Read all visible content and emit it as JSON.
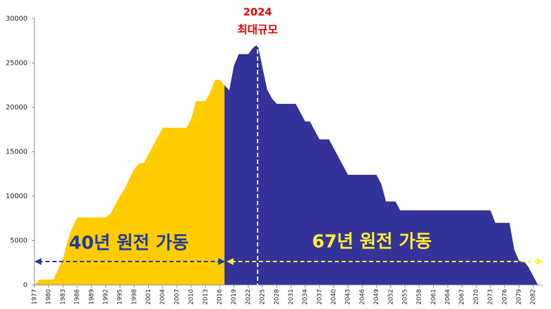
{
  "chart_data": {
    "type": "area",
    "annotations": [
      "2024",
      "최대규모",
      "40년 원전 가동",
      "67년 원전 가동"
    ],
    "x": [
      1977,
      1978,
      1979,
      1980,
      1981,
      1982,
      1983,
      1984,
      1985,
      1986,
      1987,
      1988,
      1989,
      1990,
      1991,
      1992,
      1993,
      1994,
      1995,
      1996,
      1997,
      1998,
      1999,
      2000,
      2001,
      2002,
      2003,
      2004,
      2005,
      2006,
      2007,
      2008,
      2009,
      2010,
      2011,
      2012,
      2013,
      2014,
      2015,
      2016,
      2017,
      2018,
      2019,
      2020,
      2021,
      2022,
      2023,
      2024,
      2025,
      2026,
      2027,
      2028,
      2029,
      2030,
      2031,
      2032,
      2033,
      2034,
      2035,
      2036,
      2037,
      2038,
      2039,
      2040,
      2041,
      2042,
      2043,
      2044,
      2045,
      2046,
      2047,
      2048,
      2049,
      2050,
      2051,
      2052,
      2053,
      2054,
      2055,
      2056,
      2057,
      2058,
      2059,
      2060,
      2061,
      2062,
      2063,
      2064,
      2065,
      2066,
      2067,
      2068,
      2069,
      2070,
      2071,
      2072,
      2073,
      2074,
      2075,
      2076,
      2077,
      2078,
      2079,
      2080,
      2081,
      2082,
      2083
    ],
    "series": [
      {
        "color": "#ffcc00",
        "values": [
          0,
          587,
          587,
          587,
          587,
          1800,
          3000,
          5000,
          6500,
          7600,
          7600,
          7600,
          7600,
          7600,
          7600,
          7600,
          8000,
          9000,
          10000,
          10800,
          12000,
          13000,
          13700,
          13700,
          14700,
          15700,
          16700,
          17700,
          17700,
          17700,
          17700,
          17700,
          17700,
          18700,
          20700,
          20700,
          20700,
          21700,
          23100,
          23100,
          22500,
          null,
          null,
          null,
          null,
          null,
          null,
          null,
          null,
          null,
          null,
          null,
          null,
          null,
          null,
          null,
          null,
          null,
          null,
          null,
          null,
          null,
          null,
          null,
          null,
          null,
          null,
          null,
          null,
          null,
          null,
          null,
          null,
          null,
          null,
          null,
          null,
          null,
          null,
          null,
          null,
          null,
          null,
          null,
          null,
          null,
          null,
          null,
          null,
          null,
          null,
          null,
          null,
          null,
          null,
          null,
          null,
          null,
          null,
          null,
          null,
          null,
          null,
          null,
          null,
          null,
          null
        ]
      },
      {
        "color": "#333399",
        "values": [
          null,
          null,
          null,
          null,
          null,
          null,
          null,
          null,
          null,
          null,
          null,
          null,
          null,
          null,
          null,
          null,
          null,
          null,
          null,
          null,
          null,
          null,
          null,
          null,
          null,
          null,
          null,
          null,
          null,
          null,
          null,
          null,
          null,
          null,
          null,
          null,
          null,
          null,
          null,
          null,
          22500,
          21900,
          24700,
          26000,
          26000,
          26000,
          26700,
          27100,
          24500,
          22000,
          21000,
          20400,
          20400,
          20400,
          20400,
          20400,
          19400,
          18400,
          18400,
          17400,
          16400,
          16400,
          16400,
          15400,
          14400,
          13400,
          12400,
          12400,
          12400,
          12400,
          12400,
          12400,
          12400,
          11400,
          9400,
          9400,
          9400,
          8400,
          8400,
          8400,
          8400,
          8400,
          8400,
          8400,
          8400,
          8400,
          8400,
          8400,
          8400,
          8400,
          8400,
          8400,
          8400,
          8400,
          8400,
          8400,
          8400,
          7000,
          7000,
          7000,
          7000,
          4000,
          2700,
          2700,
          2000,
          1000,
          0
        ]
      }
    ],
    "xlim": [
      1977,
      2084
    ],
    "xticks": [
      1977,
      1980,
      1983,
      1986,
      1989,
      1992,
      1995,
      1998,
      2001,
      2004,
      2007,
      2010,
      2013,
      2016,
      2019,
      2022,
      2025,
      2028,
      2031,
      2034,
      2037,
      2040,
      2043,
      2046,
      2049,
      2052,
      2055,
      2058,
      2061,
      2064,
      2067,
      2070,
      2073,
      2076,
      2079,
      2082
    ],
    "ylim": [
      0,
      30000
    ],
    "yticks": [
      0,
      5000,
      10000,
      15000,
      20000,
      25000,
      30000
    ]
  }
}
